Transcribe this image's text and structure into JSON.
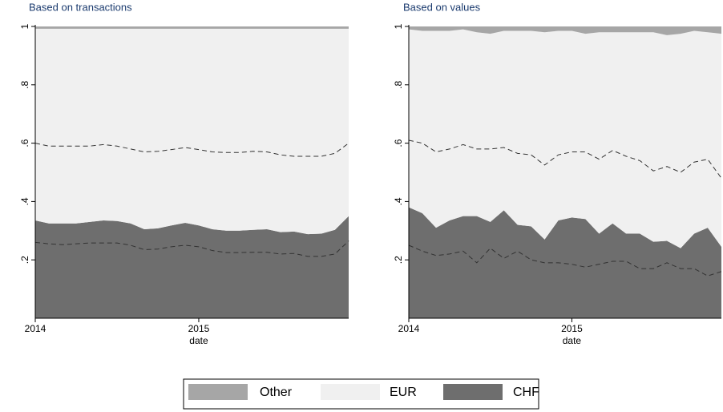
{
  "chart_data": [
    {
      "type": "stacked_area",
      "title": "Based on transactions",
      "xlabel": "date",
      "x": [
        2014,
        2014.083,
        2014.167,
        2014.25,
        2014.333,
        2014.417,
        2014.5,
        2014.583,
        2014.667,
        2014.75,
        2014.833,
        2014.917,
        2015,
        2015.083,
        2015.167,
        2015.25,
        2015.333,
        2015.417,
        2015.5,
        2015.583,
        2015.667,
        2015.75,
        2015.833,
        2015.917
      ],
      "series": [
        {
          "name": "CHF",
          "color": "#6e6e6e",
          "values": [
            0.335,
            0.325,
            0.325,
            0.325,
            0.33,
            0.335,
            0.333,
            0.325,
            0.305,
            0.308,
            0.318,
            0.327,
            0.318,
            0.305,
            0.3,
            0.3,
            0.303,
            0.305,
            0.295,
            0.297,
            0.288,
            0.29,
            0.303,
            0.35
          ]
        },
        {
          "name": "EUR",
          "color": "#f0f0f0",
          "values": [
            0.657,
            0.667,
            0.667,
            0.667,
            0.662,
            0.657,
            0.659,
            0.667,
            0.687,
            0.684,
            0.674,
            0.665,
            0.674,
            0.687,
            0.692,
            0.692,
            0.689,
            0.687,
            0.697,
            0.695,
            0.704,
            0.702,
            0.689,
            0.642
          ]
        },
        {
          "name": "Other",
          "color": "#a6a6a6",
          "values": [
            0.008,
            0.008,
            0.008,
            0.008,
            0.008,
            0.008,
            0.008,
            0.008,
            0.008,
            0.008,
            0.008,
            0.008,
            0.008,
            0.008,
            0.008,
            0.008,
            0.008,
            0.008,
            0.008,
            0.008,
            0.008,
            0.008,
            0.008,
            0.008
          ]
        }
      ],
      "lines": [
        {
          "color": "#333333",
          "values": [
            0.6,
            0.59,
            0.59,
            0.59,
            0.59,
            0.595,
            0.59,
            0.58,
            0.57,
            0.572,
            0.578,
            0.585,
            0.578,
            0.57,
            0.568,
            0.568,
            0.572,
            0.57,
            0.56,
            0.555,
            0.555,
            0.555,
            0.565,
            0.6
          ]
        },
        {
          "color": "#333333",
          "values": [
            0.26,
            0.255,
            0.252,
            0.255,
            0.258,
            0.258,
            0.258,
            0.25,
            0.235,
            0.237,
            0.245,
            0.25,
            0.245,
            0.232,
            0.225,
            0.225,
            0.226,
            0.226,
            0.22,
            0.222,
            0.212,
            0.212,
            0.22,
            0.265
          ]
        }
      ],
      "xlim": [
        2014,
        2015.917
      ],
      "xticks": [
        2014,
        2015
      ],
      "ylim": [
        0,
        1
      ],
      "yticks": [
        {
          "value": 0.2,
          "label": ".2"
        },
        {
          "value": 0.4,
          "label": ".4"
        },
        {
          "value": 0.6,
          "label": ".6"
        },
        {
          "value": 0.8,
          "label": ".8"
        },
        1
      ],
      "legend": "bottom"
    },
    {
      "type": "stacked_area",
      "title": "Based on values",
      "xlabel": "date",
      "x": [
        2014,
        2014.083,
        2014.167,
        2014.25,
        2014.333,
        2014.417,
        2014.5,
        2014.583,
        2014.667,
        2014.75,
        2014.833,
        2014.917,
        2015,
        2015.083,
        2015.167,
        2015.25,
        2015.333,
        2015.417,
        2015.5,
        2015.583,
        2015.667,
        2015.75,
        2015.833,
        2015.917
      ],
      "series": [
        {
          "name": "CHF",
          "color": "#6e6e6e",
          "values": [
            0.38,
            0.36,
            0.31,
            0.335,
            0.35,
            0.35,
            0.33,
            0.37,
            0.32,
            0.315,
            0.27,
            0.335,
            0.345,
            0.34,
            0.29,
            0.325,
            0.29,
            0.29,
            0.262,
            0.265,
            0.24,
            0.29,
            0.31,
            0.245
          ]
        },
        {
          "name": "EUR",
          "color": "#f0f0f0",
          "values": [
            0.61,
            0.625,
            0.675,
            0.65,
            0.64,
            0.63,
            0.645,
            0.615,
            0.665,
            0.67,
            0.71,
            0.65,
            0.64,
            0.635,
            0.69,
            0.655,
            0.69,
            0.69,
            0.718,
            0.705,
            0.735,
            0.695,
            0.67,
            0.73
          ]
        },
        {
          "name": "Other",
          "color": "#a6a6a6",
          "values": [
            0.01,
            0.015,
            0.015,
            0.015,
            0.01,
            0.02,
            0.025,
            0.015,
            0.015,
            0.015,
            0.02,
            0.015,
            0.015,
            0.025,
            0.02,
            0.02,
            0.02,
            0.02,
            0.02,
            0.03,
            0.025,
            0.015,
            0.02,
            0.025
          ]
        }
      ],
      "lines": [
        {
          "color": "#333333",
          "values": [
            0.61,
            0.6,
            0.57,
            0.58,
            0.595,
            0.58,
            0.58,
            0.585,
            0.565,
            0.56,
            0.525,
            0.56,
            0.57,
            0.57,
            0.545,
            0.575,
            0.555,
            0.54,
            0.505,
            0.52,
            0.5,
            0.535,
            0.545,
            0.48
          ]
        },
        {
          "color": "#333333",
          "values": [
            0.25,
            0.23,
            0.215,
            0.22,
            0.23,
            0.19,
            0.24,
            0.205,
            0.23,
            0.2,
            0.19,
            0.19,
            0.185,
            0.175,
            0.185,
            0.195,
            0.195,
            0.17,
            0.17,
            0.19,
            0.17,
            0.17,
            0.145,
            0.16
          ]
        }
      ],
      "xlim": [
        2014,
        2015.917
      ],
      "xticks": [
        2014,
        2015
      ],
      "ylim": [
        0,
        1
      ],
      "yticks": [
        {
          "value": 0.2,
          "label": ".2"
        },
        {
          "value": 0.4,
          "label": ".4"
        },
        {
          "value": 0.6,
          "label": ".6"
        },
        {
          "value": 0.8,
          "label": ".8"
        },
        1
      ],
      "legend": "bottom"
    }
  ]
}
